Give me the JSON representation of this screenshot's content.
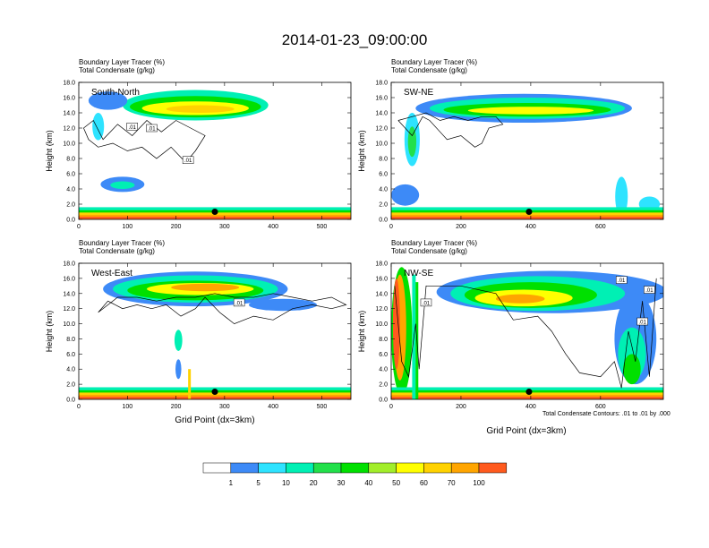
{
  "title": "2014-01-23_09:00:00",
  "panel_subtitle_1": "Boundary Layer Tracer   (%)",
  "panel_subtitle_2": "Total Condensate   (g/kg)",
  "ylabel": "Height (km)",
  "xlabel": "Grid Point (dx=3km)",
  "contour_note": "Total Condensate Contours: .01 to .01 by .000",
  "contour_label": ".01",
  "colors": {
    "bins": [
      "#ffffff",
      "#3d8af7",
      "#2ee3ff",
      "#00f0b4",
      "#22e04a",
      "#00e000",
      "#a2ee2a",
      "#ffff00",
      "#ffd200",
      "#ffa500",
      "#ff5a1e",
      "#ff1e1e"
    ]
  },
  "chart_data": [
    {
      "type": "heatmap",
      "label": "South-North",
      "xlim": [
        0,
        560
      ],
      "ylim": [
        0,
        18
      ],
      "xticks": [
        0,
        100,
        200,
        300,
        400,
        500
      ],
      "yticks": [
        "0.0",
        "2.0",
        "4.0",
        "6.0",
        "8.0",
        "10.0",
        "12.0",
        "14.0",
        "16.0",
        "18.0"
      ],
      "marker_x": 280,
      "marker_y": 1.0,
      "contour_labels": [
        [
          110,
          12.2
        ],
        [
          150,
          12.0
        ],
        [
          225,
          7.8
        ]
      ]
    },
    {
      "type": "heatmap",
      "label": "SW-NE",
      "xlim": [
        0,
        780
      ],
      "ylim": [
        0,
        18
      ],
      "xticks": [
        0,
        200,
        400,
        600
      ],
      "yticks": [
        "0.0",
        "2.0",
        "4.0",
        "6.0",
        "8.0",
        "10.0",
        "12.0",
        "14.0",
        "16.0",
        "18.0"
      ],
      "marker_x": 395,
      "marker_y": 1.0,
      "contour_labels": []
    },
    {
      "type": "heatmap",
      "label": "West-East",
      "xlim": [
        0,
        560
      ],
      "ylim": [
        0,
        18
      ],
      "xticks": [
        0,
        100,
        200,
        300,
        400,
        500
      ],
      "yticks": [
        "0.0",
        "2.0",
        "4.0",
        "6.0",
        "8.0",
        "10.0",
        "12.0",
        "14.0",
        "16.0",
        "18.0"
      ],
      "marker_x": 280,
      "marker_y": 1.0,
      "contour_labels": [
        [
          330,
          12.8
        ]
      ]
    },
    {
      "type": "heatmap",
      "label": "NW-SE",
      "xlim": [
        0,
        780
      ],
      "ylim": [
        0,
        18
      ],
      "xticks": [
        0,
        200,
        400,
        600
      ],
      "yticks": [
        "0.0",
        "2.0",
        "4.0",
        "6.0",
        "8.0",
        "10.0",
        "12.0",
        "14.0",
        "16.0",
        "18.0"
      ],
      "marker_x": 395,
      "marker_y": 1.0,
      "contour_labels": [
        [
          100,
          12.8
        ],
        [
          660,
          15.8
        ],
        [
          740,
          14.5
        ],
        [
          720,
          10.3
        ]
      ]
    }
  ],
  "colorbar": {
    "labels": [
      "1",
      "5",
      "10",
      "20",
      "30",
      "40",
      "50",
      "60",
      "70",
      "100"
    ]
  }
}
